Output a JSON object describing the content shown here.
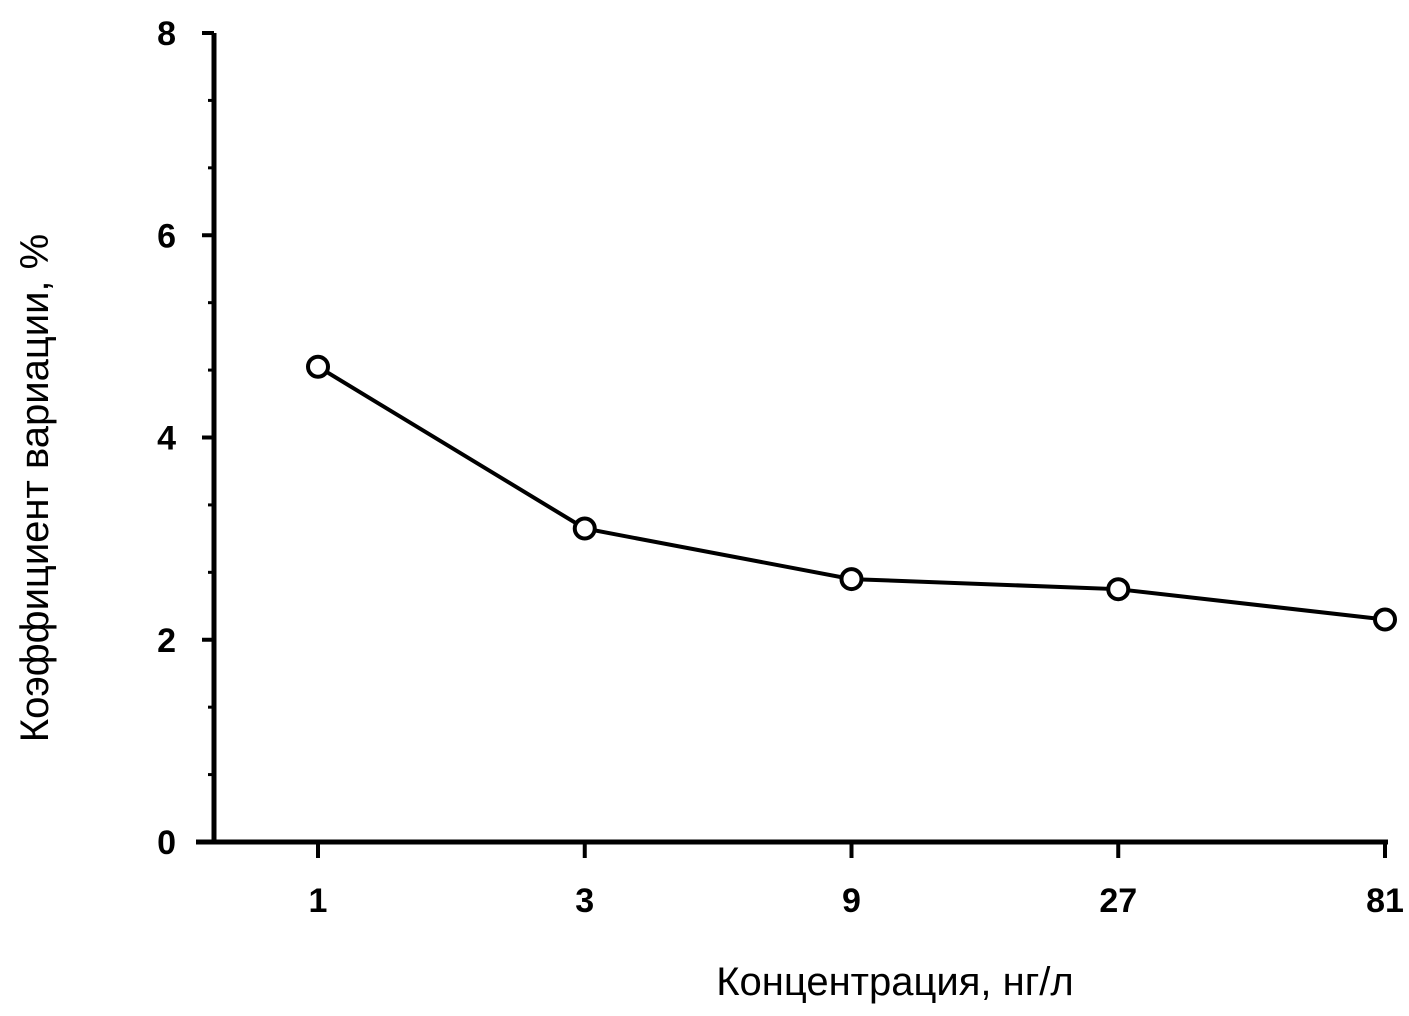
{
  "chart_data": {
    "type": "line",
    "title": "",
    "xlabel": "Концентрация, нг/л",
    "ylabel": "Коэффициент вариации, %",
    "x_scale": "log",
    "categories": [
      "1",
      "3",
      "9",
      "27",
      "81"
    ],
    "x": [
      1,
      3,
      9,
      27,
      81
    ],
    "series": [
      {
        "values": [
          4.7,
          3.1,
          2.6,
          2.5,
          2.2
        ]
      }
    ],
    "y_ticks": [
      "0",
      "2",
      "4",
      "6",
      "8"
    ],
    "ylim": [
      0,
      8
    ],
    "grid": false,
    "legend": "none",
    "marker": "open-circle",
    "colors": {
      "line": "#000000",
      "marker_fill": "#ffffff"
    }
  }
}
